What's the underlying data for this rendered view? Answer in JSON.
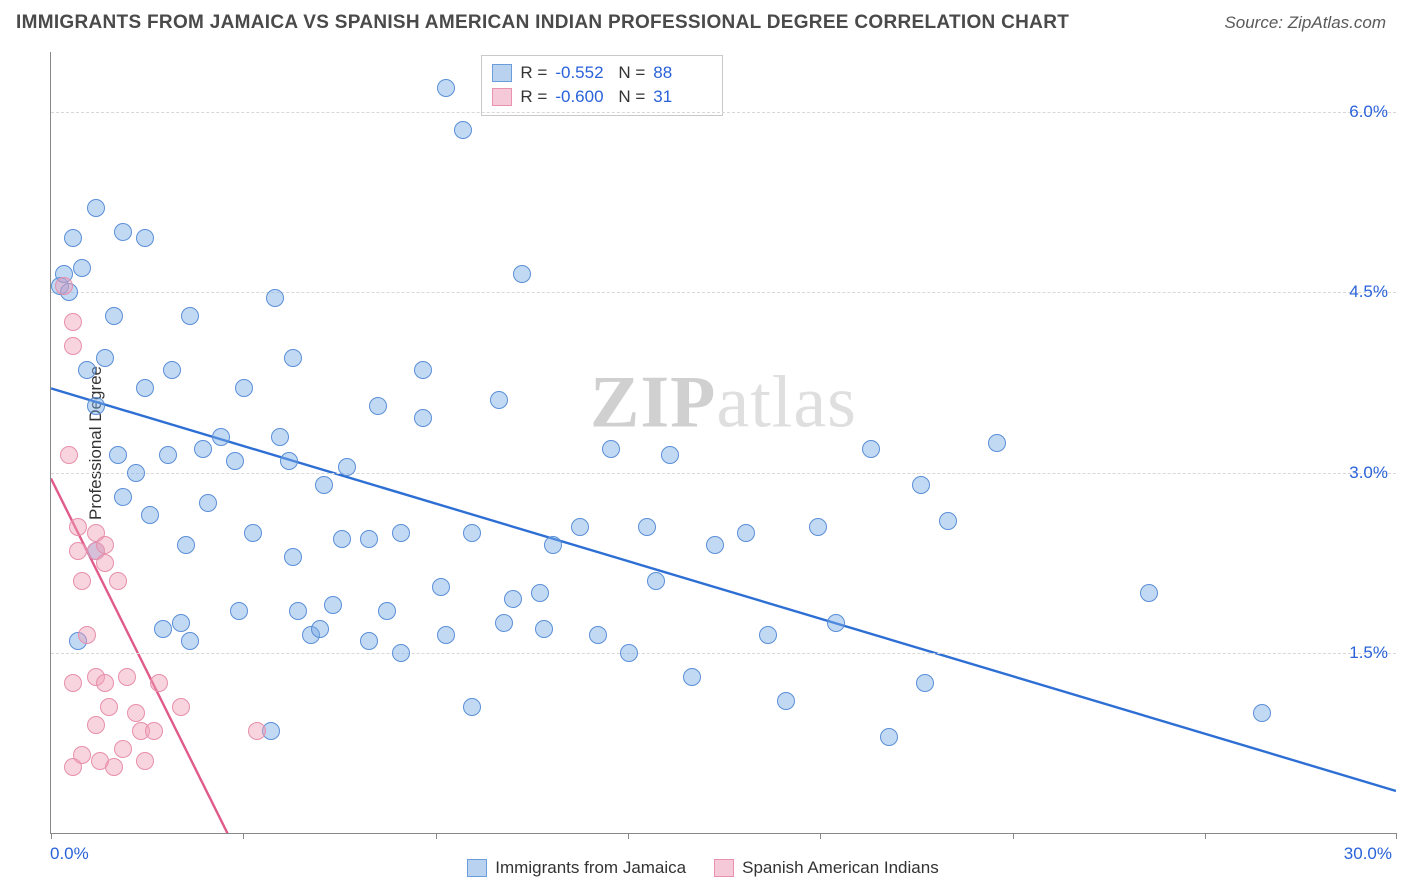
{
  "header": {
    "title": "IMMIGRANTS FROM JAMAICA VS SPANISH AMERICAN INDIAN PROFESSIONAL DEGREE CORRELATION CHART",
    "source": "Source: ZipAtlas.com"
  },
  "watermark": {
    "bold": "ZIP",
    "light": "atlas"
  },
  "chart": {
    "type": "scatter",
    "background_color": "#ffffff",
    "grid_color": "#d8d8d8",
    "axis_color": "#888888",
    "xaxis": {
      "min": 0,
      "max": 30,
      "start_label": "0.0%",
      "end_label": "30.0%",
      "tick_positions_pct": [
        0,
        14.3,
        28.6,
        42.9,
        57.2,
        71.5,
        85.8,
        100
      ]
    },
    "yaxis": {
      "title": "Professional Degree",
      "min": 0,
      "max": 6.5,
      "ticks": [
        {
          "value": 1.5,
          "label": "1.5%"
        },
        {
          "value": 3.0,
          "label": "3.0%"
        },
        {
          "value": 4.5,
          "label": "4.5%"
        },
        {
          "value": 6.0,
          "label": "6.0%"
        }
      ],
      "label_color": "#2962d9",
      "title_color": "#333333",
      "fontsize": 17
    },
    "series": [
      {
        "name": "Immigrants from Jamaica",
        "marker_fill": "rgba(120,170,230,0.45)",
        "marker_stroke": "#5a8fd6",
        "marker_radius": 9,
        "line_color": "#2e6fd4",
        "line_width": 2.4,
        "swatch_fill": "#b9d2f0",
        "swatch_border": "#6a9edb",
        "R": "-0.552",
        "N": "88",
        "trend": {
          "x1": 0,
          "y1": 3.7,
          "x2": 30,
          "y2": 0.35
        },
        "points": [
          [
            0.2,
            4.55
          ],
          [
            0.3,
            4.65
          ],
          [
            0.4,
            4.5
          ],
          [
            1.0,
            5.2
          ],
          [
            1.0,
            2.35
          ],
          [
            0.7,
            4.7
          ],
          [
            0.6,
            1.6
          ],
          [
            1.6,
            5.0
          ],
          [
            1.4,
            4.3
          ],
          [
            1.0,
            3.55
          ],
          [
            1.5,
            3.15
          ],
          [
            1.6,
            2.8
          ],
          [
            2.1,
            3.7
          ],
          [
            1.9,
            3.0
          ],
          [
            2.1,
            4.95
          ],
          [
            2.6,
            3.15
          ],
          [
            2.5,
            1.7
          ],
          [
            2.7,
            3.85
          ],
          [
            3.1,
            4.3
          ],
          [
            3.0,
            2.4
          ],
          [
            3.4,
            3.2
          ],
          [
            3.5,
            2.75
          ],
          [
            3.1,
            1.6
          ],
          [
            4.3,
            3.7
          ],
          [
            4.1,
            3.1
          ],
          [
            4.5,
            2.5
          ],
          [
            4.2,
            1.85
          ],
          [
            5.0,
            4.45
          ],
          [
            5.1,
            3.3
          ],
          [
            5.4,
            2.3
          ],
          [
            5.5,
            1.85
          ],
          [
            5.8,
            1.65
          ],
          [
            5.4,
            3.95
          ],
          [
            6.6,
            3.05
          ],
          [
            6.5,
            2.45
          ],
          [
            6.0,
            1.7
          ],
          [
            7.1,
            1.6
          ],
          [
            7.3,
            3.55
          ],
          [
            7.5,
            1.85
          ],
          [
            7.1,
            2.45
          ],
          [
            7.8,
            2.5
          ],
          [
            8.3,
            3.85
          ],
          [
            8.3,
            3.45
          ],
          [
            8.8,
            6.2
          ],
          [
            8.7,
            2.05
          ],
          [
            8.8,
            1.65
          ],
          [
            9.2,
            5.85
          ],
          [
            9.4,
            2.5
          ],
          [
            9.4,
            1.05
          ],
          [
            10.0,
            3.6
          ],
          [
            10.1,
            1.75
          ],
          [
            10.5,
            4.65
          ],
          [
            10.9,
            2.0
          ],
          [
            11.2,
            2.4
          ],
          [
            11.0,
            1.7
          ],
          [
            11.8,
            2.55
          ],
          [
            12.2,
            1.65
          ],
          [
            12.5,
            3.2
          ],
          [
            13.5,
            2.1
          ],
          [
            13.3,
            2.55
          ],
          [
            13.8,
            3.15
          ],
          [
            14.3,
            1.3
          ],
          [
            14.8,
            2.4
          ],
          [
            15.5,
            2.5
          ],
          [
            16.0,
            1.65
          ],
          [
            16.4,
            1.1
          ],
          [
            17.1,
            2.55
          ],
          [
            17.5,
            1.75
          ],
          [
            18.3,
            3.2
          ],
          [
            18.7,
            0.8
          ],
          [
            19.5,
            1.25
          ],
          [
            20.0,
            2.6
          ],
          [
            21.1,
            3.25
          ],
          [
            24.5,
            2.0
          ],
          [
            27.0,
            1.0
          ],
          [
            4.9,
            0.85
          ],
          [
            0.5,
            4.95
          ],
          [
            0.8,
            3.85
          ],
          [
            1.2,
            3.95
          ],
          [
            6.1,
            2.9
          ],
          [
            6.3,
            1.9
          ],
          [
            10.3,
            1.95
          ],
          [
            12.9,
            1.5
          ],
          [
            5.3,
            3.1
          ],
          [
            2.2,
            2.65
          ],
          [
            7.8,
            1.5
          ],
          [
            3.8,
            3.3
          ],
          [
            19.4,
            2.9
          ],
          [
            2.9,
            1.75
          ]
        ]
      },
      {
        "name": "Spanish American Indians",
        "marker_fill": "rgba(240,160,185,0.45)",
        "marker_stroke": "#e78fab",
        "marker_radius": 9,
        "line_color": "#e05a8a",
        "line_width": 2.4,
        "swatch_fill": "#f6c9d8",
        "swatch_border": "#e992b0",
        "R": "-0.600",
        "N": "31",
        "trend": {
          "x1": 0,
          "y1": 2.95,
          "x2": 4.0,
          "y2": -0.05
        },
        "points": [
          [
            0.3,
            4.55
          ],
          [
            0.5,
            4.25
          ],
          [
            0.5,
            4.05
          ],
          [
            0.4,
            3.15
          ],
          [
            0.6,
            2.55
          ],
          [
            0.6,
            2.35
          ],
          [
            0.7,
            2.1
          ],
          [
            0.5,
            1.25
          ],
          [
            0.5,
            0.55
          ],
          [
            0.7,
            0.65
          ],
          [
            0.8,
            1.65
          ],
          [
            1.0,
            2.5
          ],
          [
            1.0,
            2.35
          ],
          [
            1.0,
            1.3
          ],
          [
            1.0,
            0.9
          ],
          [
            1.1,
            0.6
          ],
          [
            1.2,
            2.4
          ],
          [
            1.2,
            2.25
          ],
          [
            1.2,
            1.25
          ],
          [
            1.3,
            1.05
          ],
          [
            1.4,
            0.55
          ],
          [
            1.5,
            2.1
          ],
          [
            1.7,
            1.3
          ],
          [
            1.6,
            0.7
          ],
          [
            1.9,
            1.0
          ],
          [
            2.0,
            0.85
          ],
          [
            2.1,
            0.6
          ],
          [
            2.4,
            1.25
          ],
          [
            2.3,
            0.85
          ],
          [
            2.9,
            1.05
          ],
          [
            4.6,
            0.85
          ]
        ]
      }
    ],
    "legend_bottom": [
      {
        "label": "Immigrants from Jamaica",
        "swatch_fill": "#b9d2f0",
        "swatch_border": "#6a9edb"
      },
      {
        "label": "Spanish American Indians",
        "swatch_fill": "#f6c9d8",
        "swatch_border": "#e992b0"
      }
    ]
  }
}
